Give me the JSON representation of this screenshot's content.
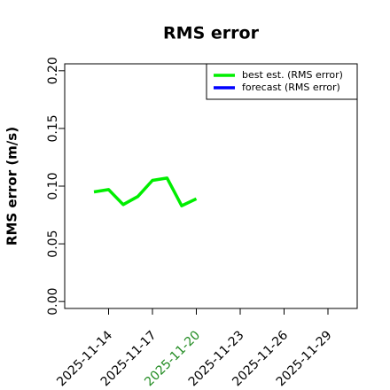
{
  "chart_data": {
    "type": "line",
    "title": "RMS error",
    "y_label": "RMS error (m/s)",
    "x": [
      "2025-11-13",
      "2025-11-14",
      "2025-11-15",
      "2025-11-16",
      "2025-11-17",
      "2025-11-18",
      "2025-11-19",
      "2025-11-20"
    ],
    "series": [
      {
        "name": "best est. (RMS error)",
        "color": "#00ee00",
        "values": [
          0.095,
          0.097,
          0.084,
          0.091,
          0.105,
          0.107,
          0.083,
          0.089
        ]
      },
      {
        "name": "forecast (RMS error)",
        "color": "#0000ff",
        "values": [
          null,
          null,
          null,
          null,
          null,
          null,
          null,
          null
        ]
      }
    ],
    "xlim": [
      "2025-11-11",
      "2025-12-01"
    ],
    "xticks": [
      "2025-11-14",
      "2025-11-17",
      "2025-11-20",
      "2025-11-23",
      "2025-11-26",
      "2025-11-29"
    ],
    "xtick_colors": [
      "#000000",
      "#000000",
      "#228b22",
      "#000000",
      "#000000",
      "#000000"
    ],
    "ylim": [
      -0.006,
      0.206
    ],
    "yticks": [
      {
        "value": 0,
        "label": "0.00"
      },
      {
        "value": 0.05,
        "label": "0.05"
      },
      {
        "value": 0.1,
        "label": "0.10"
      },
      {
        "value": 0.15,
        "label": "0.15"
      },
      {
        "value": 0.2,
        "label": "0.20"
      }
    ],
    "legend": "top-right",
    "grid": false
  }
}
